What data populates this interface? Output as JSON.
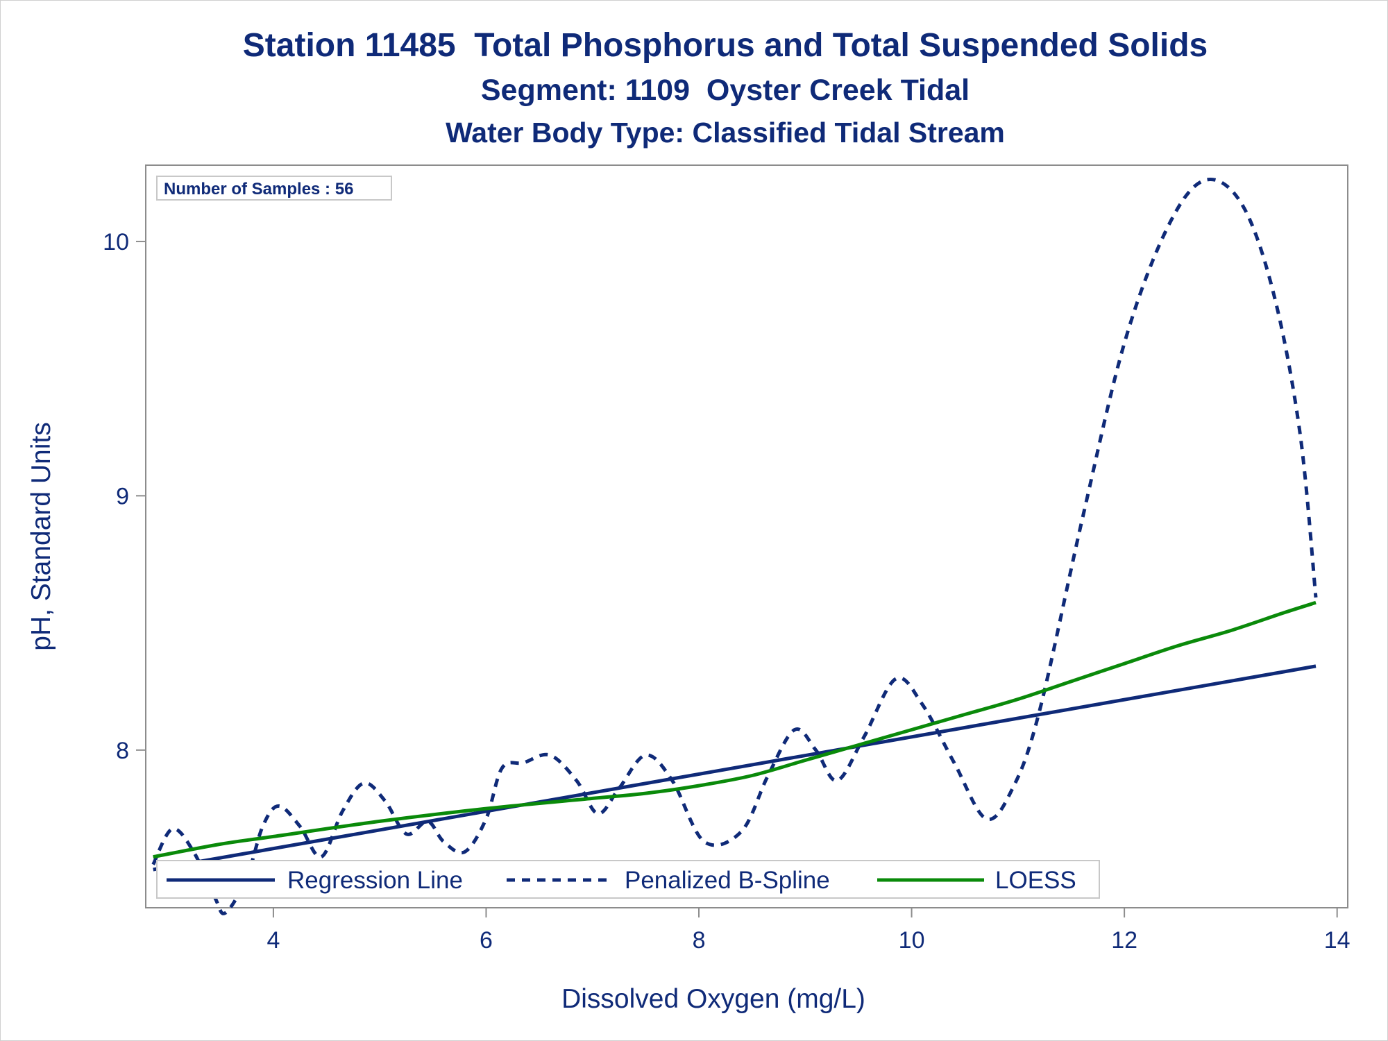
{
  "chart_data": {
    "type": "line",
    "title": "Station 11485  Total Phosphorus and Total Suspended Solids",
    "subtitle": "Segment: 1109  Oyster Creek Tidal",
    "subtitle2": "Water Body Type: Classified Tidal Stream",
    "xlabel": "Dissolved Oxygen (mg/L)",
    "ylabel": "pH, Standard Units",
    "xlim": [
      2.8,
      14.1
    ],
    "ylim": [
      7.38,
      10.3
    ],
    "x_ticks": [
      4,
      6,
      8,
      10,
      12,
      14
    ],
    "y_ticks": [
      8,
      9,
      10
    ],
    "x_tick_labels": [
      "4",
      "6",
      "8",
      "10",
      "12",
      "14"
    ],
    "y_tick_labels": [
      "8",
      "9",
      "10"
    ],
    "grid": false,
    "legend_position": "bottom-left inside",
    "annotation": "Number of Samples : 56",
    "series": [
      {
        "name": "Regression Line",
        "style": "solid",
        "color": "#0f2a78",
        "x": [
          2.87,
          13.8
        ],
        "y": [
          7.53,
          8.33
        ]
      },
      {
        "name": "Penalized B-Spline",
        "style": "dashed",
        "color": "#0f2a78",
        "x": [
          2.87,
          3.05,
          3.25,
          3.45,
          3.55,
          3.75,
          3.9,
          4.05,
          4.25,
          4.45,
          4.65,
          4.85,
          5.05,
          5.25,
          5.45,
          5.6,
          5.8,
          6.0,
          6.15,
          6.35,
          6.6,
          6.85,
          7.05,
          7.25,
          7.5,
          7.75,
          8.05,
          8.4,
          8.65,
          8.9,
          9.1,
          9.3,
          9.55,
          9.85,
          10.1,
          10.4,
          10.7,
          10.95,
          11.2,
          11.6,
          12.0,
          12.4,
          12.75,
          13.1,
          13.4,
          13.65,
          13.8
        ],
        "y": [
          7.55,
          7.69,
          7.6,
          7.42,
          7.36,
          7.5,
          7.7,
          7.78,
          7.7,
          7.58,
          7.76,
          7.87,
          7.8,
          7.67,
          7.72,
          7.64,
          7.6,
          7.73,
          7.93,
          7.95,
          7.98,
          7.88,
          7.75,
          7.85,
          7.98,
          7.88,
          7.64,
          7.68,
          7.9,
          8.08,
          8.0,
          7.88,
          8.05,
          8.28,
          8.18,
          7.95,
          7.73,
          7.85,
          8.15,
          8.9,
          9.6,
          10.05,
          10.24,
          10.15,
          9.8,
          9.25,
          8.6
        ]
      },
      {
        "name": "LOESS",
        "style": "solid",
        "color": "#0a8a0a",
        "x": [
          2.87,
          3.5,
          4.0,
          5.0,
          6.0,
          7.0,
          7.5,
          8.0,
          8.5,
          9.0,
          9.5,
          10.0,
          10.5,
          11.0,
          11.5,
          12.0,
          12.5,
          13.0,
          13.5,
          13.8
        ],
        "y": [
          7.58,
          7.63,
          7.66,
          7.72,
          7.77,
          7.81,
          7.83,
          7.86,
          7.9,
          7.96,
          8.02,
          8.08,
          8.14,
          8.2,
          8.27,
          8.34,
          8.41,
          8.47,
          8.54,
          8.58
        ]
      }
    ]
  }
}
